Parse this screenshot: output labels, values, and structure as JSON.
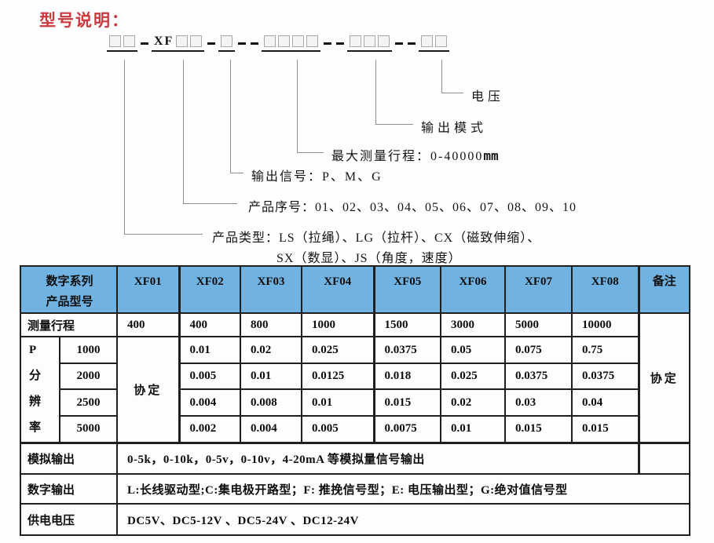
{
  "title": "型号说明：",
  "model_line": {
    "segments": [
      {
        "kind": "boxes",
        "prefix": "",
        "boxes": 2
      },
      {
        "kind": "dashes",
        "dashes": 1
      },
      {
        "kind": "boxes",
        "prefix": "XF",
        "boxes": 2
      },
      {
        "kind": "dashes",
        "dashes": 1
      },
      {
        "kind": "boxes",
        "prefix": "",
        "boxes": 1
      },
      {
        "kind": "dashes",
        "dashes": 2
      },
      {
        "kind": "boxes",
        "prefix": "",
        "boxes": 4
      },
      {
        "kind": "dashes",
        "dashes": 2
      },
      {
        "kind": "boxes",
        "prefix": "",
        "boxes": 3
      },
      {
        "kind": "dashes",
        "dashes": 2
      },
      {
        "kind": "boxes",
        "prefix": "",
        "boxes": 2
      }
    ]
  },
  "callouts": {
    "voltage": {
      "label": "电压"
    },
    "output_mode": {
      "label": "输出模式"
    },
    "max_travel": {
      "label": "最大测量行程：0-40000",
      "unit": "mm"
    },
    "output_signal": {
      "label": "输出信号：P、M、G"
    },
    "serial": {
      "label": "产品序号：01、02、03、04、05、06、07、08、09、10"
    },
    "product_type": {
      "line1": "产品类型：LS（拉绳）、LG（拉杆）、CX（磁致伸缩）、",
      "line2": "SX（数显）、JS（角度，速度）"
    }
  },
  "table": {
    "header": {
      "col1_lines": [
        "数字系列",
        "产品型号"
      ],
      "models": [
        "XF01",
        "XF02",
        "XF03",
        "XF04",
        "XF05",
        "XF06",
        "XF07",
        "XF08"
      ],
      "remark": "备注"
    },
    "travel_row": {
      "label": "测量行程",
      "values": [
        "400",
        "400",
        "800",
        "1000",
        "1500",
        "3000",
        "5000",
        "10000"
      ]
    },
    "remark_merged": "协定",
    "resolution": {
      "group_chars": [
        "P",
        "分",
        "辨",
        "率"
      ],
      "xf01_merged": "协定",
      "rows": [
        {
          "level": "1000",
          "values": [
            "0.01",
            "0.02",
            "0.025",
            "0.0375",
            "0.05",
            "0.075",
            "0.75"
          ]
        },
        {
          "level": "2000",
          "values": [
            "0.005",
            "0.01",
            "0.0125",
            "0.018",
            "0.025",
            "0.0375",
            "0.0375"
          ]
        },
        {
          "level": "2500",
          "values": [
            "0.004",
            "0.008",
            "0.01",
            "0.015",
            "0.02",
            "0.03",
            "0.04"
          ]
        },
        {
          "level": "5000",
          "values": [
            "0.002",
            "0.004",
            "0.005",
            "0.0075",
            "0.01",
            "0.015",
            "0.015"
          ]
        }
      ]
    },
    "bottom_rows": [
      {
        "label": "模拟输出",
        "text": "0-5k，0-10k，0-5v，0-10v，4-20mA 等模拟量信号输出",
        "has_remark_cell": true
      },
      {
        "label": "数字输出",
        "text": "L:长线驱动型;C:集电极开路型；F: 推挽信号型；E: 电压输出型；G:绝对值信号型",
        "has_remark_cell": false
      },
      {
        "label": "供电电压",
        "text": "DC5V、DC5-12V 、DC5-24V 、DC12-24V",
        "has_remark_cell": false
      }
    ]
  },
  "colors": {
    "header_bg": "#70b2e2",
    "title_red": "#c9393e",
    "connector_gray": "#8f8f8f",
    "border_black": "#1f1f1f"
  }
}
